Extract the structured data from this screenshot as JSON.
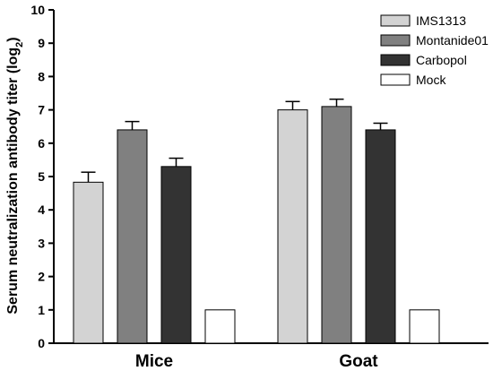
{
  "chart_data": {
    "type": "bar",
    "categories": [
      "Mice",
      "Goat"
    ],
    "ylabel_main": "Serum neutralization antibody titer (log",
    "ylabel_sub": "2",
    "ylabel_close": ")",
    "xlabel": "",
    "ylim": [
      0,
      10
    ],
    "yticks": [
      "0",
      "1",
      "2",
      "3",
      "4",
      "5",
      "6",
      "7",
      "8",
      "9",
      "10"
    ],
    "grid": false,
    "legend_position": "top-right",
    "series": [
      {
        "name": "IMS1313",
        "color": "#d3d3d3",
        "values": [
          4.83,
          7.0
        ],
        "errors": [
          0.3,
          0.25
        ]
      },
      {
        "name": "Montanide01",
        "color": "#808080",
        "values": [
          6.4,
          7.1
        ],
        "errors": [
          0.25,
          0.22
        ]
      },
      {
        "name": "Carbopol",
        "color": "#333333",
        "values": [
          5.3,
          6.4
        ],
        "errors": [
          0.25,
          0.2
        ]
      },
      {
        "name": "Mock",
        "color": "#ffffff",
        "values": [
          1.0,
          1.0
        ],
        "errors": [
          0,
          0
        ]
      }
    ]
  }
}
